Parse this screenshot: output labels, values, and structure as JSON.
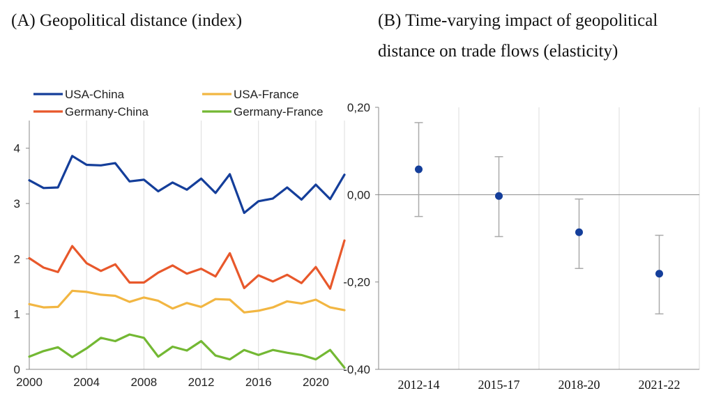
{
  "chart_data": [
    {
      "type": "line",
      "title": "(A) Geopolitical distance (index)",
      "xlabel": "",
      "ylabel": "",
      "xlim": [
        2000,
        2022
      ],
      "ylim": [
        0,
        4.5
      ],
      "x_ticks": [
        "2000",
        "2004",
        "2008",
        "2012",
        "2016",
        "2020"
      ],
      "y_ticks": [
        "0",
        "1",
        "2",
        "3",
        "4"
      ],
      "grid": "vertical",
      "legend_position": "top",
      "x": [
        2000,
        2001,
        2002,
        2003,
        2004,
        2005,
        2006,
        2007,
        2008,
        2009,
        2010,
        2011,
        2012,
        2013,
        2014,
        2015,
        2016,
        2017,
        2018,
        2019,
        2020,
        2021,
        2022
      ],
      "series": [
        {
          "name": "USA-China",
          "color": "#143e9a",
          "values": [
            3.42,
            3.28,
            3.29,
            3.86,
            3.7,
            3.69,
            3.73,
            3.4,
            3.43,
            3.22,
            3.38,
            3.25,
            3.45,
            3.19,
            3.53,
            2.83,
            3.04,
            3.09,
            3.29,
            3.07,
            3.34,
            3.08,
            3.52
          ]
        },
        {
          "name": "USA-France",
          "color": "#f2b642",
          "values": [
            1.18,
            1.12,
            1.13,
            1.42,
            1.4,
            1.35,
            1.33,
            1.22,
            1.3,
            1.24,
            1.1,
            1.2,
            1.13,
            1.27,
            1.26,
            1.03,
            1.06,
            1.12,
            1.23,
            1.19,
            1.26,
            1.12,
            1.07
          ]
        },
        {
          "name": "Germany-China",
          "color": "#e8582b",
          "values": [
            2.01,
            1.84,
            1.76,
            2.23,
            1.92,
            1.78,
            1.9,
            1.57,
            1.57,
            1.75,
            1.88,
            1.73,
            1.82,
            1.68,
            2.1,
            1.47,
            1.7,
            1.59,
            1.71,
            1.56,
            1.85,
            1.46,
            2.33
          ]
        },
        {
          "name": "Germany-France",
          "color": "#73b833",
          "values": [
            0.23,
            0.33,
            0.4,
            0.22,
            0.38,
            0.57,
            0.51,
            0.63,
            0.57,
            0.23,
            0.41,
            0.34,
            0.51,
            0.25,
            0.18,
            0.35,
            0.26,
            0.35,
            0.3,
            0.26,
            0.18,
            0.35,
            0.03
          ]
        }
      ]
    },
    {
      "type": "scatter",
      "title": "(B) Time-varying impact of geopolitical distance on trade flows (elasticity)",
      "title_lines": [
        "(B) Time-varying impact of geopolitical",
        "distance on trade flows (elasticity)"
      ],
      "xlabel": "",
      "ylabel": "",
      "categories": [
        "2012-14",
        "2015-17",
        "2018-20",
        "2021-22"
      ],
      "ylim": [
        -0.4,
        0.2
      ],
      "y_ticks": [
        0.2,
        0.0,
        -0.2,
        -0.4
      ],
      "y_tick_labels": [
        "0,20",
        "0,00",
        "-0,20",
        "-0,40"
      ],
      "grid": "vertical",
      "point_color": "#143e9a",
      "errorbar_color": "#aaaaaa",
      "zero_line": true,
      "series": [
        {
          "name": "elasticity",
          "values": [
            0.058,
            -0.003,
            -0.086,
            -0.181
          ],
          "lower": [
            -0.05,
            -0.096,
            -0.169,
            -0.273
          ],
          "upper": [
            0.165,
            0.087,
            -0.01,
            -0.093
          ]
        }
      ]
    }
  ]
}
